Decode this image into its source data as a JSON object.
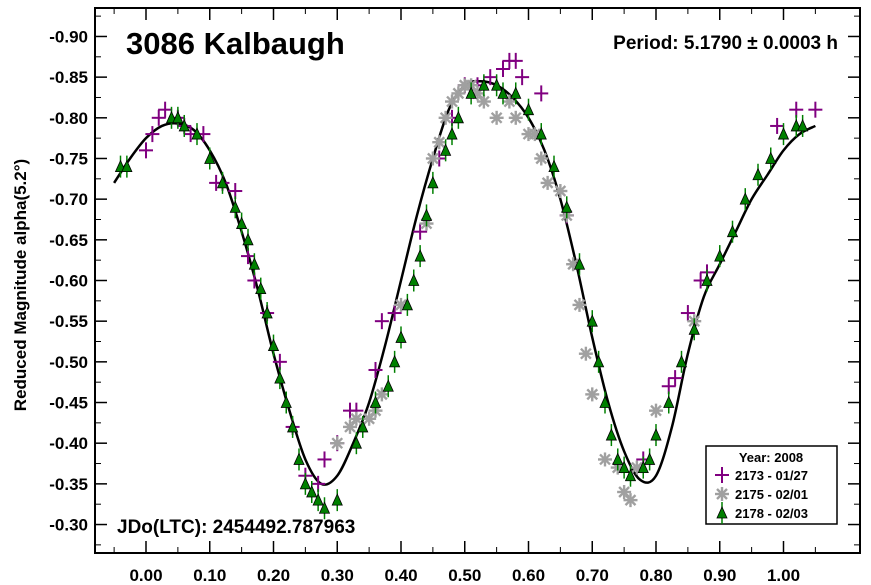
{
  "chart_data": {
    "type": "scatter",
    "title": "3086 Kalbaugh",
    "period_label": "Period: 5.1790 ± 0.0003 h",
    "epoch_label": "JDo(LTC): 2454492.787963",
    "ylabel": "Reduced Magnitude alpha(5.2°)",
    "xlabel": "",
    "xlim": [
      -0.08,
      1.12
    ],
    "ylim": [
      -0.935,
      -0.265
    ],
    "y_inverted": true,
    "x_ticks": [
      "0.00",
      "0.10",
      "0.20",
      "0.30",
      "0.40",
      "0.50",
      "0.60",
      "0.70",
      "0.80",
      "0.90",
      "1.00"
    ],
    "y_ticks": [
      "-0.90",
      "-0.85",
      "-0.80",
      "-0.75",
      "-0.70",
      "-0.65",
      "-0.60",
      "-0.55",
      "-0.50",
      "-0.45",
      "-0.40",
      "-0.35",
      "-0.30"
    ],
    "legend": {
      "title": "Year: 2008",
      "placement": "bottom-right",
      "entries": [
        {
          "label": "2173 - 01/27",
          "marker": "plus",
          "color": "#800080"
        },
        {
          "label": "2175 - 02/01",
          "marker": "asterisk",
          "color": "#a0a0a0"
        },
        {
          "label": "2178 - 02/03",
          "marker": "triangle",
          "color": "#008000"
        }
      ]
    },
    "fit_curve": {
      "name": "fit",
      "color": "#000000",
      "x": [
        -0.05,
        -0.025,
        0.0,
        0.025,
        0.05,
        0.075,
        0.1,
        0.125,
        0.15,
        0.175,
        0.2,
        0.225,
        0.25,
        0.275,
        0.3,
        0.325,
        0.35,
        0.375,
        0.4,
        0.425,
        0.45,
        0.475,
        0.5,
        0.525,
        0.55,
        0.575,
        0.6,
        0.625,
        0.65,
        0.675,
        0.7,
        0.725,
        0.75,
        0.775,
        0.8,
        0.825,
        0.85,
        0.875,
        0.9,
        0.925,
        0.95,
        0.975,
        1.0,
        1.025,
        1.05
      ],
      "y": [
        -0.72,
        -0.75,
        -0.775,
        -0.79,
        -0.793,
        -0.785,
        -0.76,
        -0.72,
        -0.66,
        -0.59,
        -0.51,
        -0.44,
        -0.38,
        -0.35,
        -0.36,
        -0.4,
        -0.45,
        -0.52,
        -0.6,
        -0.68,
        -0.75,
        -0.81,
        -0.84,
        -0.845,
        -0.84,
        -0.825,
        -0.8,
        -0.76,
        -0.7,
        -0.62,
        -0.53,
        -0.45,
        -0.39,
        -0.355,
        -0.36,
        -0.42,
        -0.51,
        -0.58,
        -0.62,
        -0.66,
        -0.7,
        -0.73,
        -0.76,
        -0.78,
        -0.79
      ]
    },
    "series": [
      {
        "name": "2173 - 01/27",
        "marker": "plus",
        "color": "#800080",
        "x": [
          0.0,
          0.01,
          0.02,
          0.03,
          0.05,
          0.06,
          0.07,
          0.09,
          0.11,
          0.12,
          0.14,
          0.16,
          0.17,
          0.19,
          0.21,
          0.23,
          0.25,
          0.27,
          0.28,
          0.3,
          0.32,
          0.33,
          0.36,
          0.37,
          0.39,
          0.43,
          0.46,
          0.48,
          0.5,
          0.52,
          0.54,
          0.56,
          0.57,
          0.58,
          0.59,
          0.62,
          0.66,
          0.78,
          0.82,
          0.83,
          0.85,
          0.87,
          0.88,
          0.99,
          1.02,
          1.05
        ],
        "y": [
          -0.76,
          -0.78,
          -0.8,
          -0.81,
          -0.8,
          -0.79,
          -0.78,
          -0.78,
          -0.72,
          -0.72,
          -0.71,
          -0.63,
          -0.6,
          -0.56,
          -0.5,
          -0.42,
          -0.36,
          -0.35,
          -0.38,
          -0.4,
          -0.44,
          -0.44,
          -0.49,
          -0.55,
          -0.56,
          -0.66,
          -0.75,
          -0.8,
          -0.84,
          -0.84,
          -0.85,
          -0.86,
          -0.87,
          -0.87,
          -0.85,
          -0.83,
          -0.68,
          -0.38,
          -0.47,
          -0.48,
          -0.56,
          -0.6,
          -0.61,
          -0.79,
          -0.81,
          -0.81
        ]
      },
      {
        "name": "2175 - 02/01",
        "marker": "asterisk",
        "color": "#a0a0a0",
        "x": [
          0.3,
          0.32,
          0.33,
          0.35,
          0.36,
          0.37,
          0.4,
          0.44,
          0.45,
          0.46,
          0.47,
          0.48,
          0.49,
          0.5,
          0.51,
          0.52,
          0.53,
          0.55,
          0.57,
          0.58,
          0.6,
          0.61,
          0.62,
          0.63,
          0.65,
          0.66,
          0.67,
          0.68,
          0.69,
          0.7,
          0.72,
          0.74,
          0.75,
          0.76,
          0.77,
          0.8,
          0.86
        ],
        "y": [
          -0.4,
          -0.42,
          -0.43,
          -0.43,
          -0.44,
          -0.46,
          -0.57,
          -0.67,
          -0.75,
          -0.77,
          -0.8,
          -0.82,
          -0.83,
          -0.84,
          -0.84,
          -0.83,
          -0.82,
          -0.8,
          -0.82,
          -0.8,
          -0.78,
          -0.78,
          -0.75,
          -0.72,
          -0.71,
          -0.68,
          -0.62,
          -0.57,
          -0.51,
          -0.46,
          -0.38,
          -0.37,
          -0.34,
          -0.33,
          -0.37,
          -0.44,
          -0.55
        ]
      },
      {
        "name": "2178 - 02/03",
        "marker": "triangle",
        "color": "#008000",
        "x": [
          -0.04,
          -0.03,
          0.04,
          0.05,
          0.06,
          0.08,
          0.1,
          0.12,
          0.14,
          0.15,
          0.16,
          0.17,
          0.18,
          0.19,
          0.2,
          0.21,
          0.22,
          0.23,
          0.24,
          0.25,
          0.26,
          0.27,
          0.28,
          0.3,
          0.33,
          0.34,
          0.36,
          0.38,
          0.39,
          0.4,
          0.41,
          0.42,
          0.43,
          0.44,
          0.45,
          0.47,
          0.48,
          0.49,
          0.51,
          0.53,
          0.55,
          0.56,
          0.58,
          0.6,
          0.62,
          0.64,
          0.66,
          0.68,
          0.7,
          0.71,
          0.72,
          0.73,
          0.74,
          0.75,
          0.76,
          0.78,
          0.79,
          0.8,
          0.82,
          0.84,
          0.86,
          0.88,
          0.9,
          0.92,
          0.94,
          0.96,
          0.98,
          1.0,
          1.02,
          1.03
        ],
        "y": [
          -0.74,
          -0.74,
          -0.8,
          -0.8,
          -0.79,
          -0.78,
          -0.75,
          -0.72,
          -0.69,
          -0.67,
          -0.65,
          -0.62,
          -0.59,
          -0.56,
          -0.52,
          -0.48,
          -0.45,
          -0.42,
          -0.38,
          -0.35,
          -0.34,
          -0.33,
          -0.32,
          -0.33,
          -0.4,
          -0.42,
          -0.45,
          -0.47,
          -0.5,
          -0.53,
          -0.57,
          -0.6,
          -0.63,
          -0.68,
          -0.72,
          -0.76,
          -0.78,
          -0.8,
          -0.83,
          -0.84,
          -0.84,
          -0.83,
          -0.83,
          -0.81,
          -0.78,
          -0.74,
          -0.69,
          -0.62,
          -0.55,
          -0.5,
          -0.45,
          -0.41,
          -0.38,
          -0.37,
          -0.36,
          -0.37,
          -0.38,
          -0.41,
          -0.45,
          -0.5,
          -0.54,
          -0.6,
          -0.63,
          -0.66,
          -0.7,
          -0.73,
          -0.75,
          -0.78,
          -0.79,
          -0.79
        ]
      }
    ]
  }
}
